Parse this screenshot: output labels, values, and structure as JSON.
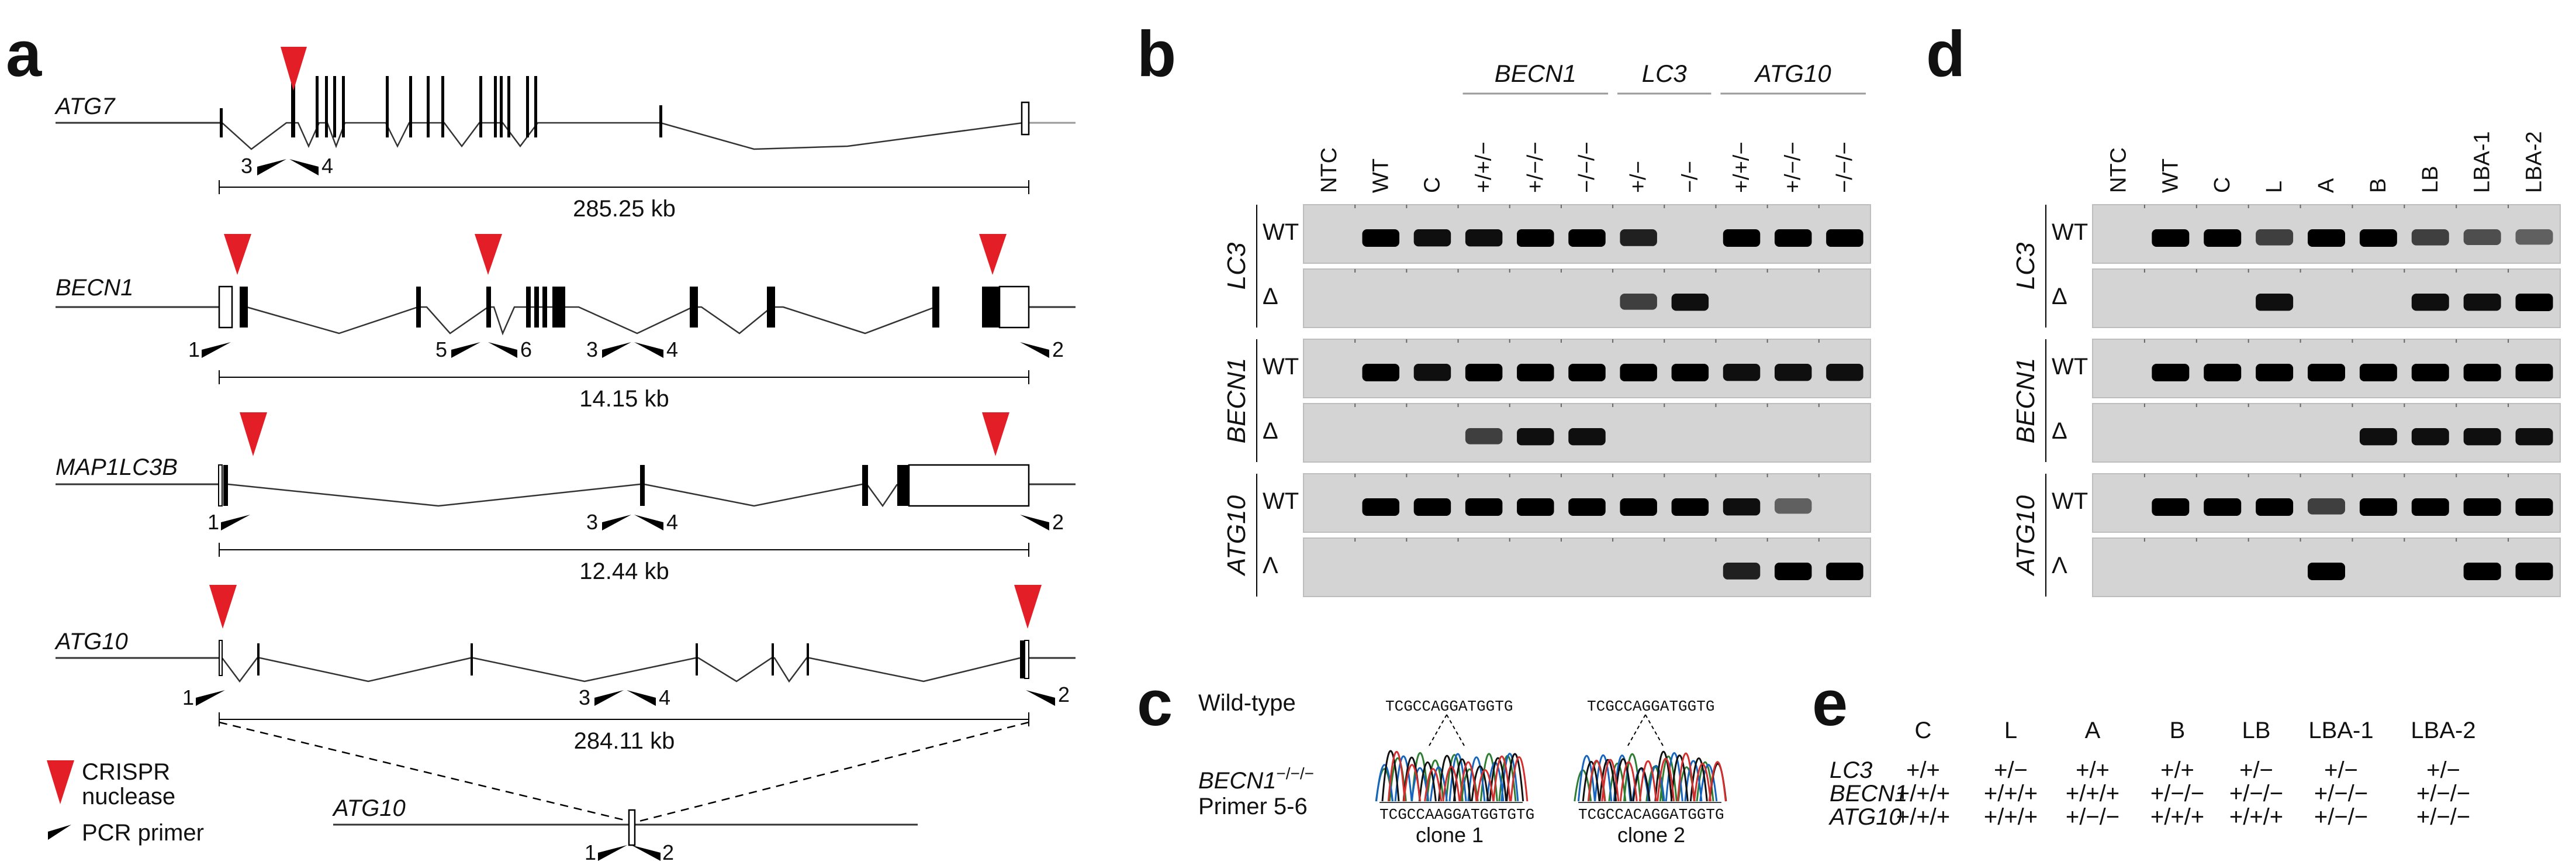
{
  "panels": {
    "a": "a",
    "b": "b",
    "c": "c",
    "d": "d",
    "e": "e"
  },
  "panel_a": {
    "genes": [
      {
        "name": "ATG7",
        "size": "285.25 kb",
        "primers": [
          "3",
          "4"
        ]
      },
      {
        "name": "BECN1",
        "size": "14.15 kb",
        "primers": [
          "1",
          "5",
          "6",
          "3",
          "4",
          "2"
        ]
      },
      {
        "name": "MAP1LC3B",
        "size": "12.44 kb",
        "primers": [
          "1",
          "3",
          "4",
          "2"
        ]
      },
      {
        "name": "ATG10",
        "size": "284.11 kb",
        "primers": [
          "1",
          "3",
          "4",
          "2"
        ]
      }
    ],
    "deleted": {
      "name": "ATG10",
      "primers": [
        "1",
        "2"
      ]
    },
    "legend": {
      "crispr_line1": "CRISPR",
      "crispr_line2": "nuclease",
      "primer": "PCR primer"
    },
    "colors": {
      "crispr": "#e41e26",
      "exon": "#000000",
      "intron": "#333333"
    }
  },
  "panel_b": {
    "groups": [
      "BECN1",
      "LC3",
      "ATG10"
    ],
    "lanes": [
      "NTC",
      "WT",
      "C",
      "+/+/−",
      "+/−/−",
      "−/−/−",
      "+/−",
      "−/−",
      "+/+/−",
      "+/−/−",
      "−/−/−"
    ],
    "side_labels": [
      "LC3",
      "BECN1",
      "ATG10"
    ],
    "row_labels": [
      "WT",
      "Δ"
    ],
    "row_labels_last": [
      "WT",
      "Λ"
    ]
  },
  "panel_c": {
    "wild_type": "Wild-type",
    "mutant_line1": "BECN1",
    "mutant_sup": "−/−/−",
    "mutant_line2": "Primer 5-6",
    "seq_top1": "TCGCCAGGATGGTG",
    "seq_top2": "TCGCCAGGATGGTG",
    "seq_bottom1": "TCGCCAAGGATGGTGTG",
    "seq_bottom2": "TCGCCACAGGATGGTG",
    "clone1": "clone 1",
    "clone2": "clone 2"
  },
  "panel_d": {
    "lanes": [
      "NTC",
      "WT",
      "C",
      "L",
      "A",
      "B",
      "LB",
      "LBA-1",
      "LBA-2"
    ],
    "side_labels": [
      "LC3",
      "BECN1",
      "ATG10"
    ],
    "row_labels": [
      "WT",
      "Δ"
    ],
    "row_labels_last": [
      "WT",
      "Λ"
    ]
  },
  "panel_e": {
    "columns": [
      "C",
      "L",
      "A",
      "B",
      "LB",
      "LBA-1",
      "LBA-2"
    ],
    "rows": [
      {
        "gene": "LC3",
        "values": [
          "+/+",
          "+/−",
          "+/+",
          "+/+",
          "+/−",
          "+/−",
          "+/−"
        ]
      },
      {
        "gene": "BECN1",
        "values": [
          "+/+/+",
          "+/+/+",
          "+/+/+",
          "+/−/−",
          "+/−/−",
          "+/−/−",
          "+/−/−"
        ]
      },
      {
        "gene": "ATG10",
        "values": [
          "+/+/+",
          "+/+/+",
          "+/−/−",
          "+/+/+",
          "+/+/+",
          "+/−/−",
          "+/−/−"
        ]
      }
    ]
  }
}
